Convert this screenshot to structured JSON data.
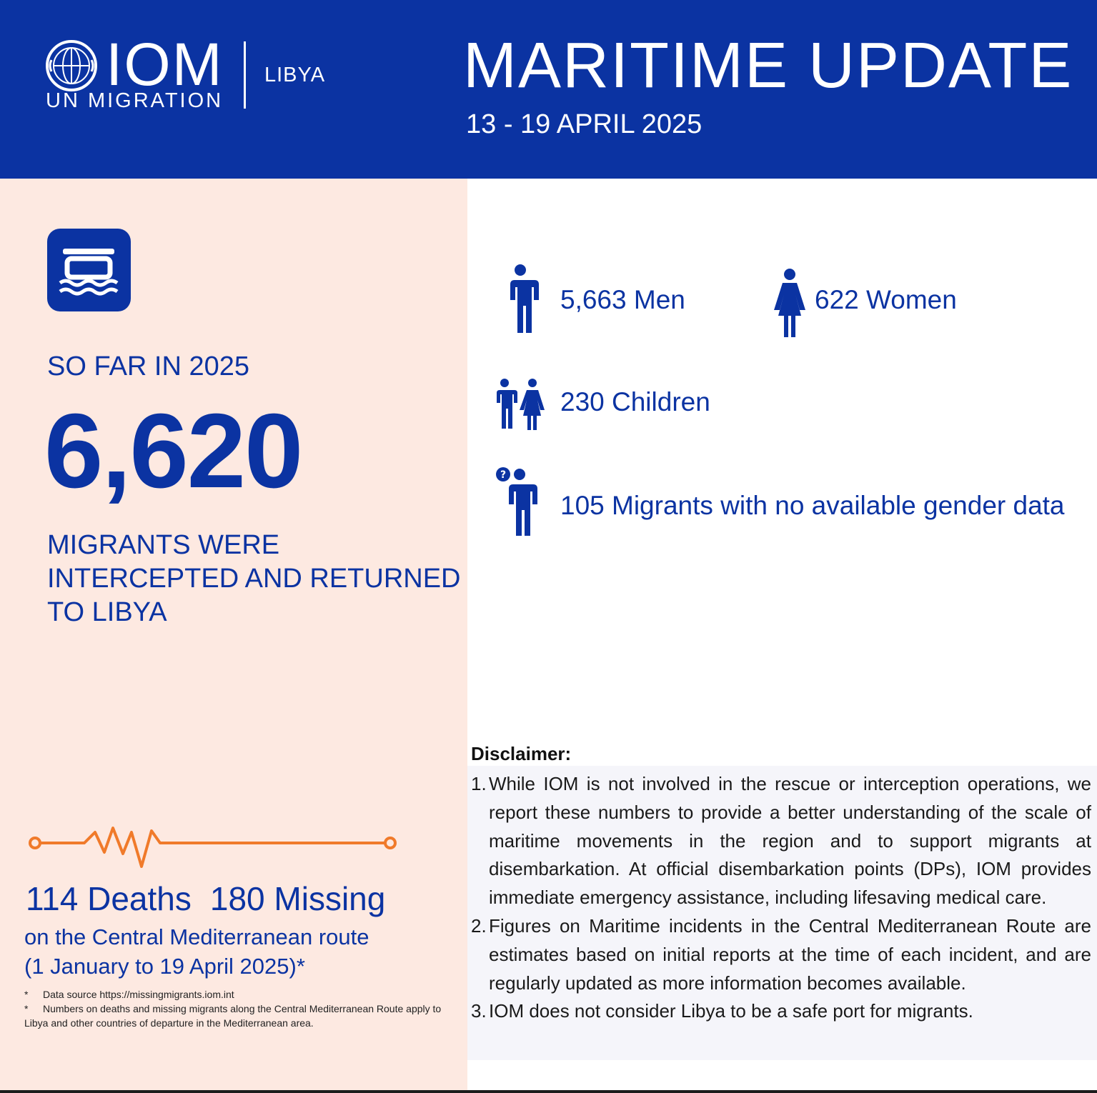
{
  "colors": {
    "brand_blue": "#0b33a2",
    "panel_pink": "#fde9e1",
    "accent_orange": "#f07a2a"
  },
  "header": {
    "logo_text": "IOM",
    "logo_subtext": "UN MIGRATION",
    "country": "LIBYA",
    "title": "MARITIME UPDATE",
    "date": "13 - 19 APRIL 2025"
  },
  "summary": {
    "icon": "boat-on-water-icon",
    "so_far_label": "SO FAR IN 2025",
    "total": "6,620",
    "caption": "MIGRANTS WERE INTERCEPTED AND RETURNED TO LIBYA"
  },
  "breakdown": {
    "men": {
      "icon": "man-icon",
      "text": "5,663 Men"
    },
    "women": {
      "icon": "woman-icon",
      "text": "622 Women"
    },
    "children": {
      "icon": "children-icon",
      "text": "230 Children"
    },
    "unknown": {
      "icon": "unknown-gender-icon",
      "text": "105 Migrants with no available gender data"
    }
  },
  "incidents": {
    "icon": "heartbeat-line-icon",
    "deaths": "114 Deaths",
    "missing": "180 Missing",
    "route": "on the Central Mediterranean route",
    "period": "(1 January to 19 April 2025)*",
    "footnotes": [
      "Data source https://missingmigrants.iom.int",
      "Numbers on deaths and missing migrants along the Central Mediterranean Route apply to Libya and other countries of departure in the Mediterranean area."
    ]
  },
  "disclaimer": {
    "title": "Disclaimer:",
    "items": [
      "While IOM is not involved in the rescue or interception operations, we report these numbers to provide a better understanding of the scale of maritime movements in the region and to support migrants at disembarkation. At official disembarkation points (DPs), IOM provides immediate emergency assistance, including lifesaving medical care.",
      "Figures on Maritime incidents in the Central Mediterranean Route are estimates based on initial reports at the time of each incident, and are regularly updated as more information becomes available.",
      "IOM does not consider Libya to be a safe port for migrants."
    ],
    "numbers": [
      "1.",
      "2.",
      "3."
    ]
  }
}
